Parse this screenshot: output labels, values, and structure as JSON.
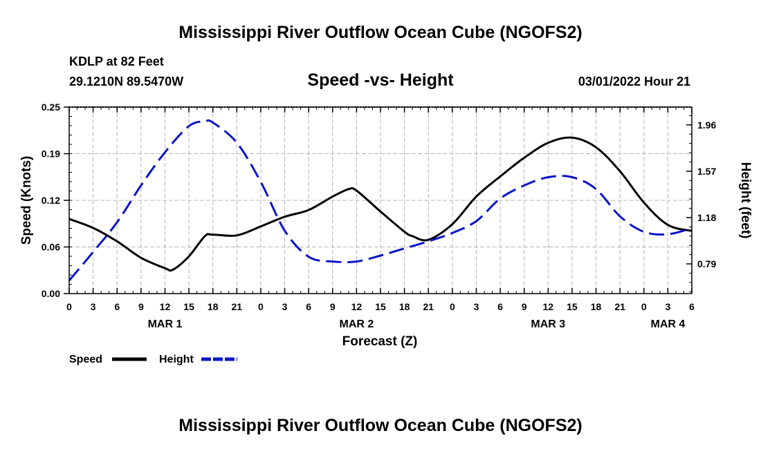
{
  "header": {
    "title": "Mississippi River Outflow Ocean Cube (NGOFS2)",
    "station": "KDLP at 82 Feet",
    "coords": "29.1210N  89.5470W",
    "subtitle": "Speed -vs- Height",
    "datetime": "03/01/2022 Hour 21",
    "footer_title": "Mississippi River Outflow Ocean Cube (NGOFS2)"
  },
  "chart_data": {
    "type": "line",
    "title": "Speed -vs- Height",
    "xlabel": "Forecast (Z)",
    "ylabel": "Speed (Knots)",
    "y2label": "Height (feet)",
    "x_unit": "hours from 00Z MAR 1",
    "xlim": [
      0,
      78
    ],
    "ylim": [
      0,
      0.25
    ],
    "y2lim": [
      0.54,
      2.11
    ],
    "grid": true,
    "x_ticks": [
      0,
      3,
      6,
      9,
      12,
      15,
      18,
      21,
      24,
      27,
      30,
      33,
      36,
      39,
      42,
      45,
      48,
      51,
      54,
      57,
      60,
      63,
      66,
      69,
      72,
      75,
      78
    ],
    "x_tick_labels": [
      "0",
      "3",
      "6",
      "9",
      "12",
      "15",
      "18",
      "21",
      "0",
      "3",
      "6",
      "9",
      "12",
      "15",
      "18",
      "21",
      "0",
      "3",
      "6",
      "9",
      "12",
      "15",
      "18",
      "21",
      "0",
      "3",
      "6"
    ],
    "day_labels": [
      {
        "text": "MAR 1",
        "x": 12
      },
      {
        "text": "MAR 2",
        "x": 36
      },
      {
        "text": "MAR 3",
        "x": 60
      },
      {
        "text": "MAR 4",
        "x": 75
      }
    ],
    "y_ticks": [
      {
        "value": 0.0,
        "label": "0.00"
      },
      {
        "value": 0.0625,
        "label": "0.06"
      },
      {
        "value": 0.125,
        "label": "0.12"
      },
      {
        "value": 0.1875,
        "label": "0.19"
      },
      {
        "value": 0.25,
        "label": "0.25"
      }
    ],
    "y2_ticks": [
      {
        "value": 0.79,
        "label": "0.79"
      },
      {
        "value": 1.18,
        "label": "1.18"
      },
      {
        "value": 1.57,
        "label": "1.57"
      },
      {
        "value": 1.96,
        "label": "1.96"
      }
    ],
    "series": [
      {
        "name": "Speed",
        "axis": "left",
        "color": "#000000",
        "style": "solid",
        "x": [
          0,
          3,
          6,
          9,
          12,
          13,
          15,
          17,
          18,
          21,
          24,
          27,
          30,
          33,
          35,
          36,
          39,
          42,
          43,
          45,
          48,
          51,
          54,
          57,
          60,
          63,
          66,
          69,
          72,
          75,
          78
        ],
        "values": [
          0.1,
          0.088,
          0.07,
          0.048,
          0.034,
          0.032,
          0.05,
          0.077,
          0.079,
          0.078,
          0.09,
          0.103,
          0.112,
          0.13,
          0.14,
          0.138,
          0.11,
          0.083,
          0.077,
          0.072,
          0.093,
          0.13,
          0.157,
          0.182,
          0.202,
          0.209,
          0.196,
          0.164,
          0.122,
          0.092,
          0.084
        ]
      },
      {
        "name": "Height",
        "axis": "right",
        "color": "#0a14c8",
        "style": "dashed",
        "x": [
          0,
          3,
          6,
          9,
          12,
          15,
          17,
          18,
          21,
          24,
          27,
          30,
          33,
          36,
          39,
          42,
          45,
          48,
          51,
          54,
          57,
          60,
          63,
          66,
          69,
          72,
          75,
          78
        ],
        "values": [
          0.65,
          0.89,
          1.14,
          1.45,
          1.73,
          1.95,
          1.99,
          1.98,
          1.81,
          1.48,
          1.07,
          0.85,
          0.81,
          0.81,
          0.86,
          0.92,
          0.98,
          1.05,
          1.15,
          1.34,
          1.45,
          1.52,
          1.52,
          1.42,
          1.19,
          1.06,
          1.04,
          1.09
        ]
      }
    ],
    "legend": [
      {
        "label": "Speed",
        "color": "#000000",
        "style": "solid"
      },
      {
        "label": "Height",
        "color": "#0a14c8",
        "style": "dashed"
      }
    ]
  }
}
